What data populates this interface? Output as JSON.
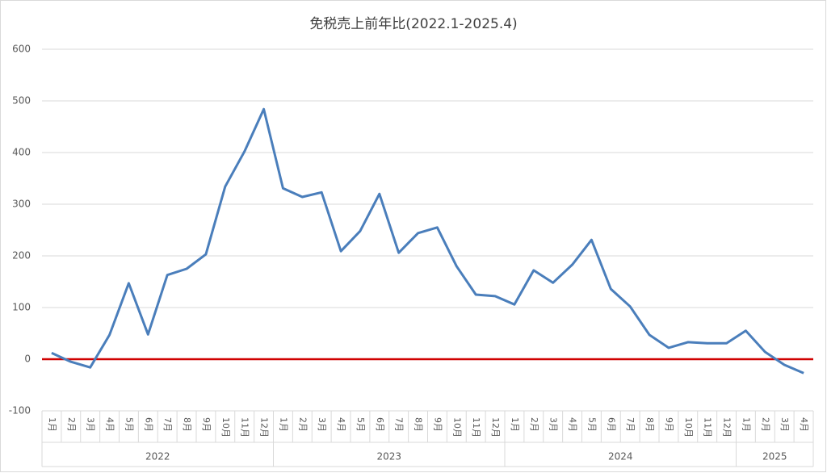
{
  "chart_data": {
    "type": "line",
    "title": "免税売上前年比(2022.1-2025.4)",
    "category_groups": [
      {
        "name": "2022",
        "categories": [
          "1月",
          "2月",
          "3月",
          "4月",
          "5月",
          "6月",
          "7月",
          "8月",
          "9月",
          "10月",
          "11月",
          "12月"
        ]
      },
      {
        "name": "2023",
        "categories": [
          "1月",
          "2月",
          "3月",
          "4月",
          "5月",
          "6月",
          "7月",
          "8月",
          "9月",
          "10月",
          "11月",
          "12月"
        ]
      },
      {
        "name": "2024",
        "categories": [
          "1月",
          "2月",
          "3月",
          "4月",
          "5月",
          "6月",
          "7月",
          "8月",
          "9月",
          "10月",
          "11月",
          "12月"
        ]
      },
      {
        "name": "2025",
        "categories": [
          "1月",
          "2月",
          "3月",
          "4月"
        ]
      }
    ],
    "series": [
      {
        "color": "#4a7ebb",
        "values": [
          12,
          -5,
          -16,
          47,
          147,
          48,
          163,
          175,
          203,
          334,
          402,
          484,
          331,
          314,
          323,
          209,
          248,
          320,
          206,
          244,
          255,
          180,
          125,
          122,
          106,
          172,
          148,
          183,
          231,
          136,
          102,
          47,
          22,
          33,
          31,
          31,
          55,
          14,
          -11,
          -27
        ]
      }
    ],
    "ylim": [
      -100,
      600
    ],
    "yticks": [
      -100,
      0,
      100,
      200,
      300,
      400,
      500,
      600
    ],
    "grid": true,
    "reference_line": {
      "value": 0,
      "color": "#d00000"
    }
  }
}
